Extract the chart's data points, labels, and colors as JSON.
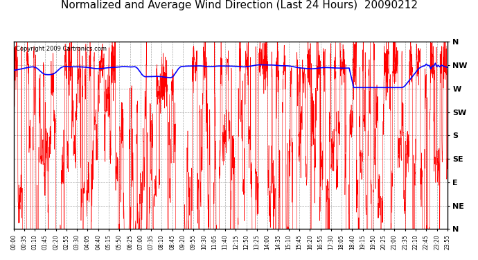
{
  "title": "Normalized and Average Wind Direction (Last 24 Hours)  20090212",
  "copyright": "Copyright 2009 Cartronics.com",
  "background_color": "#ffffff",
  "plot_bg_color": "#ffffff",
  "grid_color": "#aaaaaa",
  "ytick_labels": [
    "N",
    "NW",
    "W",
    "SW",
    "S",
    "SE",
    "E",
    "NE",
    "N"
  ],
  "ytick_values": [
    360,
    315,
    270,
    225,
    180,
    135,
    90,
    45,
    0
  ],
  "ylim": [
    0,
    360
  ],
  "xtick_labels": [
    "00:00",
    "00:35",
    "01:10",
    "01:45",
    "02:20",
    "02:55",
    "03:30",
    "04:05",
    "04:40",
    "05:15",
    "05:50",
    "06:25",
    "07:00",
    "07:35",
    "08:10",
    "08:45",
    "09:20",
    "09:55",
    "10:30",
    "11:05",
    "11:40",
    "12:15",
    "12:50",
    "13:25",
    "14:00",
    "14:35",
    "15:10",
    "15:45",
    "16:20",
    "16:55",
    "17:30",
    "18:05",
    "18:40",
    "19:15",
    "19:50",
    "20:25",
    "21:00",
    "21:35",
    "22:10",
    "22:45",
    "23:20",
    "23:55"
  ],
  "red_line_color": "#ff0000",
  "blue_line_color": "#0000ff",
  "title_fontsize": 11,
  "copyright_fontsize": 6,
  "ytick_fontsize": 8,
  "xtick_fontsize": 5.5,
  "fig_width": 6.9,
  "fig_height": 3.75,
  "dpi": 100
}
